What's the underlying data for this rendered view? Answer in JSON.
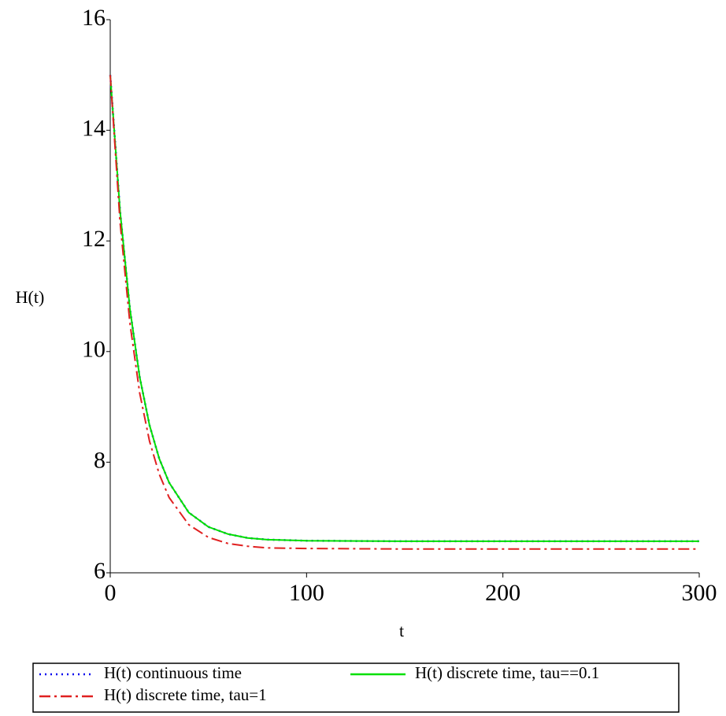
{
  "chart_data": {
    "type": "line",
    "x_label": "t",
    "y_label": "H(t)",
    "x": [
      0,
      5,
      10,
      15,
      20,
      25,
      30,
      40,
      50,
      60,
      70,
      80,
      100,
      150,
      200,
      250,
      300
    ],
    "series": [
      {
        "name": "H(t) continuous time",
        "color": "#0000ee",
        "dash": "dot",
        "values": [
          15,
          12.54,
          10.78,
          9.54,
          8.67,
          8.06,
          7.63,
          7.09,
          6.83,
          6.7,
          6.63,
          6.6,
          6.58,
          6.57,
          6.57,
          6.57,
          6.57
        ]
      },
      {
        "name": "H(t) discrete time, tau==0.1",
        "color": "#00e000",
        "dash": "solid",
        "values": [
          15,
          12.54,
          10.78,
          9.54,
          8.67,
          8.06,
          7.63,
          7.09,
          6.83,
          6.7,
          6.63,
          6.6,
          6.58,
          6.57,
          6.57,
          6.57,
          6.57
        ]
      },
      {
        "name": "H(t) discrete time, tau=1",
        "color": "#e02020",
        "dash": "dashdot",
        "values": [
          15,
          12.34,
          10.52,
          9.25,
          8.38,
          7.78,
          7.36,
          6.87,
          6.64,
          6.53,
          6.48,
          6.45,
          6.44,
          6.43,
          6.43,
          6.43,
          6.43
        ]
      }
    ],
    "xlim": [
      0,
      300
    ],
    "xticks": [
      0,
      100,
      200,
      300
    ],
    "ylim": [
      6,
      16
    ],
    "yticks": [
      6,
      8,
      10,
      12,
      14,
      16
    ]
  }
}
